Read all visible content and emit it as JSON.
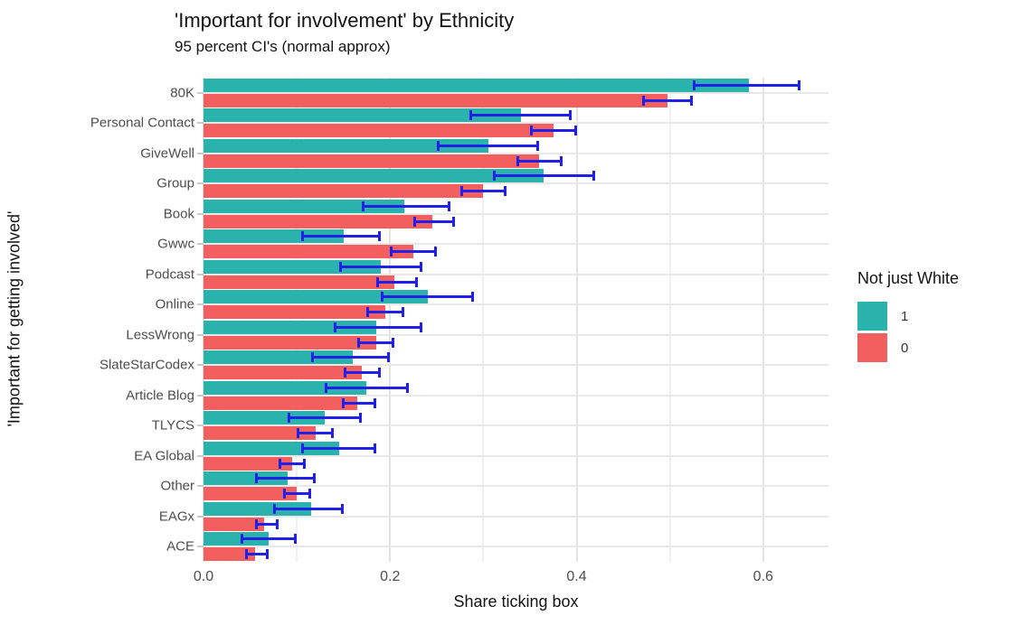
{
  "header": {
    "title": "'Important for involvement' by Ethnicity",
    "subtitle": "95 percent CI's (normal approx)"
  },
  "legend": {
    "title": "Not just White",
    "items": [
      {
        "label": "1",
        "color": "#2ab3ad"
      },
      {
        "label": "0",
        "color": "#f25f5e"
      }
    ]
  },
  "colors": {
    "teal_bar": "#2ab3ad",
    "red_bar": "#f25f5e",
    "error_bar_blue": "#2020e6",
    "grid_major": "#e3e3e3",
    "grid_minor": "#f0f0f0",
    "axis_text": "#4d4d4d"
  },
  "chart_data": {
    "type": "bar",
    "orientation": "horizontal",
    "title": "'Important for involvement' by Ethnicity",
    "subtitle": "95 percent CI's (normal approx)",
    "xlabel": "Share ticking box",
    "ylabel": "'Important for getting involved'",
    "xlim": [
      0,
      0.67
    ],
    "xticks": [
      0.0,
      0.2,
      0.4,
      0.6
    ],
    "xtick_labels": [
      "0.0",
      "0.2",
      "0.4",
      "0.6"
    ],
    "minor_xticks": [
      0.1,
      0.3,
      0.5
    ],
    "grid": true,
    "legend_position": "right",
    "legend_title": "Not just White",
    "error_bars": "95% CI (normal approx)",
    "categories": [
      "80K",
      "Personal Contact",
      "GiveWell",
      "Group",
      "Book",
      "Gwwc",
      "Podcast",
      "Online",
      "LessWrong",
      "SlateStarCodex",
      "Article Blog",
      "TLYCS",
      "EA Global",
      "Other",
      "EAGx",
      "ACE"
    ],
    "series": [
      {
        "name": "1",
        "color": "#2ab3ad",
        "values": [
          0.585,
          0.34,
          0.305,
          0.365,
          0.215,
          0.15,
          0.19,
          0.24,
          0.185,
          0.16,
          0.175,
          0.13,
          0.145,
          0.09,
          0.115,
          0.07
        ],
        "ci_low": [
          0.525,
          0.285,
          0.25,
          0.31,
          0.17,
          0.105,
          0.145,
          0.19,
          0.14,
          0.115,
          0.13,
          0.09,
          0.105,
          0.055,
          0.075,
          0.04
        ],
        "ci_high": [
          0.64,
          0.395,
          0.36,
          0.42,
          0.265,
          0.19,
          0.235,
          0.29,
          0.235,
          0.2,
          0.22,
          0.17,
          0.185,
          0.12,
          0.15,
          0.1
        ]
      },
      {
        "name": "0",
        "color": "#f25f5e",
        "values": [
          0.497,
          0.375,
          0.36,
          0.3,
          0.245,
          0.225,
          0.205,
          0.195,
          0.185,
          0.17,
          0.165,
          0.12,
          0.095,
          0.1,
          0.065,
          0.055
        ],
        "ci_low": [
          0.47,
          0.35,
          0.335,
          0.275,
          0.225,
          0.2,
          0.185,
          0.175,
          0.165,
          0.15,
          0.148,
          0.1,
          0.08,
          0.085,
          0.055,
          0.045
        ],
        "ci_high": [
          0.525,
          0.4,
          0.385,
          0.325,
          0.27,
          0.25,
          0.23,
          0.215,
          0.205,
          0.19,
          0.185,
          0.14,
          0.11,
          0.115,
          0.08,
          0.07
        ]
      }
    ]
  }
}
